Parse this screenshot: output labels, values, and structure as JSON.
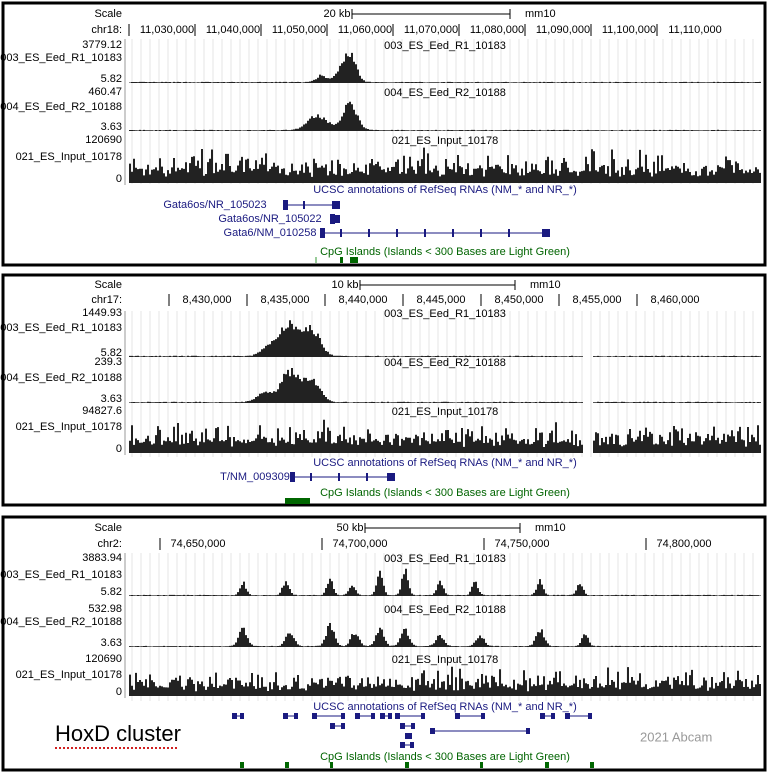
{
  "panels": [
    {
      "scale_label": "Scale",
      "scale_size": "20 kb",
      "assembly": "mm10",
      "chrom": "chr18:",
      "positions": [
        "11,030,000",
        "11,040,000",
        "11,050,000",
        "11,060,000",
        "11,070,000",
        "11,080,000",
        "11,090,000",
        "11,100,000",
        "11,110,000"
      ],
      "tracks": [
        {
          "max": "3779.12",
          "name": "003_ES_Eed_R1_10183",
          "min": "5.82"
        },
        {
          "max": "460.47",
          "name": "004_ES_Eed_R2_10188",
          "min": "3.63"
        },
        {
          "max": "120690",
          "name": "021_ES_Input_10178",
          "min": "0"
        }
      ],
      "annotation_title": "UCSC annotations of RefSeq RNAs (NM_* and NR_*)",
      "genes": [
        "Gata6os/NR_105023",
        "Gata6os/NR_105022",
        "Gata6/NM_010258"
      ],
      "cpg_title": "CpG Islands (Islands < 300 Bases are Light Green)"
    },
    {
      "scale_label": "Scale",
      "scale_size": "10 kb",
      "assembly": "mm10",
      "chrom": "chr17:",
      "positions": [
        "8,430,000",
        "8,435,000",
        "8,440,000",
        "8,445,000",
        "8,450,000",
        "8,455,000",
        "8,460,000"
      ],
      "tracks": [
        {
          "max": "1449.93",
          "name": "003_ES_Eed_R1_10183",
          "min": "5.82"
        },
        {
          "max": "239.3",
          "name": "004_ES_Eed_R2_10188",
          "min": "3.63"
        },
        {
          "max": "94827.6",
          "name": "021_ES_Input_10178",
          "min": "0"
        }
      ],
      "annotation_title": "UCSC annotations of RefSeq RNAs (NM_* and NR_*)",
      "genes": [
        "T/NM_009309"
      ],
      "cpg_title": "CpG Islands (Islands < 300 Bases are Light Green)"
    },
    {
      "scale_label": "Scale",
      "scale_size": "50 kb",
      "assembly": "mm10",
      "chrom": "chr2:",
      "positions": [
        "74,650,000",
        "74,700,000",
        "74,750,000",
        "74,800,000"
      ],
      "tracks": [
        {
          "max": "3883.94",
          "name": "003_ES_Eed_R1_10183",
          "min": "5.82"
        },
        {
          "max": "532.98",
          "name": "004_ES_Eed_R2_10188",
          "min": "3.63"
        },
        {
          "max": "120690",
          "name": "021_ES_Input_10178",
          "min": "0"
        }
      ],
      "annotation_title": "UCSC annotations of RefSeq RNAs (NM_* and NR_*)",
      "genes": [],
      "cpg_title": "CpG Islands (Islands < 300 Bases are Light Green)"
    }
  ],
  "label": "HoxD cluster",
  "watermark": "2021 Abcam"
}
